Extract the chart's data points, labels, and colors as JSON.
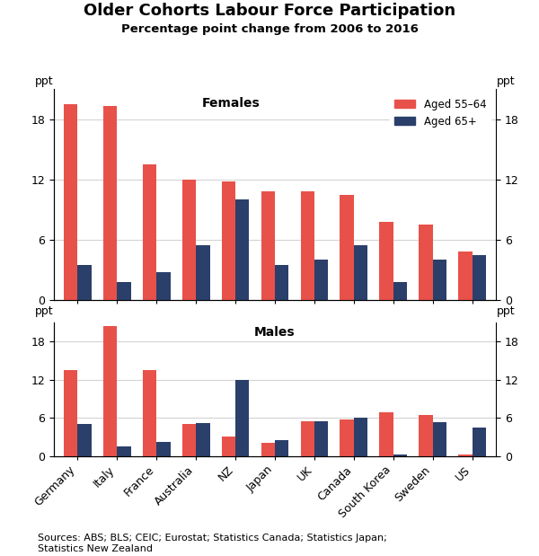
{
  "title": "Older Cohorts Labour Force Participation",
  "subtitle": "Percentage point change from 2006 to 2016",
  "countries": [
    "Germany",
    "Italy",
    "France",
    "Australia",
    "NZ",
    "Japan",
    "UK",
    "Canada",
    "South Korea",
    "Sweden",
    "US"
  ],
  "females_55_64": [
    19.5,
    19.3,
    13.5,
    12.0,
    11.8,
    10.8,
    10.8,
    10.5,
    7.8,
    7.5,
    4.8
  ],
  "females_65plus": [
    3.5,
    1.8,
    2.8,
    5.5,
    10.0,
    3.5,
    4.0,
    5.5,
    1.8,
    4.0,
    4.5
  ],
  "males_55_64": [
    13.5,
    20.5,
    13.5,
    5.0,
    3.0,
    2.0,
    5.5,
    5.8,
    6.8,
    6.5,
    0.2
  ],
  "males_65plus": [
    5.0,
    1.5,
    2.2,
    5.2,
    12.0,
    2.5,
    5.5,
    6.0,
    0.2,
    5.3,
    4.5
  ],
  "color_red": "#E8514A",
  "color_navy": "#2B3F6B",
  "ylabel": "ppt",
  "ylim": [
    0,
    21
  ],
  "yticks": [
    0,
    6,
    12,
    18
  ],
  "source": "Sources: ABS; BLS; CEIC; Eurostat; Statistics Canada; Statistics Japan;\nStatistics New Zealand"
}
